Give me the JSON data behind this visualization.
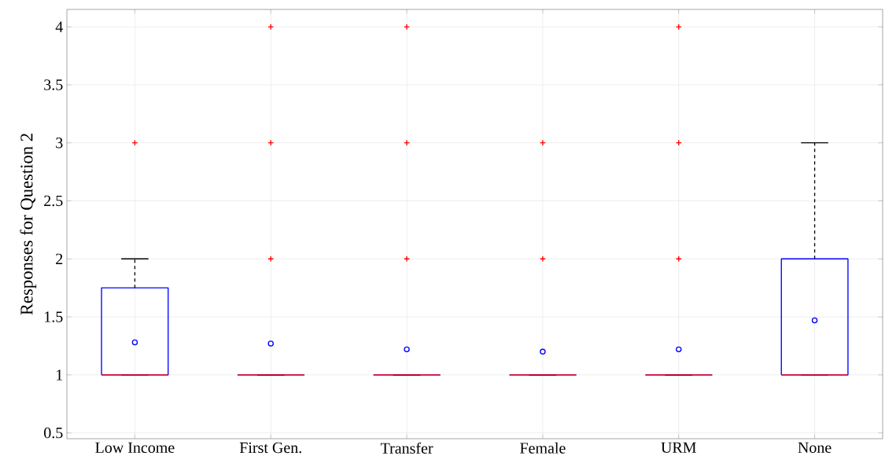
{
  "chart_data": {
    "type": "box",
    "ylabel": "Responses for Question 2",
    "categories": [
      "Low Income",
      "First Gen.",
      "Transfer",
      "Female",
      "URM",
      "None"
    ],
    "color": "#0000ff",
    "boxes": [
      {
        "low": 1,
        "q1": 1,
        "median": 1,
        "q3": 1.75,
        "high": 2,
        "mean": 1.28,
        "outliers": [
          3
        ]
      },
      {
        "low": 1,
        "q1": 1,
        "median": 1,
        "q3": 1,
        "high": 1,
        "mean": 1.27,
        "outliers": [
          2,
          3,
          4
        ]
      },
      {
        "low": 1,
        "q1": 1,
        "median": 1,
        "q3": 1,
        "high": 1,
        "mean": 1.22,
        "outliers": [
          2,
          3,
          4
        ]
      },
      {
        "low": 1,
        "q1": 1,
        "median": 1,
        "q3": 1,
        "high": 1,
        "mean": 1.2,
        "outliers": [
          2,
          3
        ]
      },
      {
        "low": 1,
        "q1": 1,
        "median": 1,
        "q3": 1,
        "high": 1,
        "mean": 1.22,
        "outliers": [
          2,
          3,
          4
        ]
      },
      {
        "low": 1,
        "q1": 1,
        "median": 1,
        "q3": 2,
        "high": 3,
        "mean": 1.47
      }
    ],
    "ylim": [
      0.45,
      4.15
    ],
    "yticks": [
      0.5,
      1,
      1.5,
      2,
      2.5,
      3,
      3.5,
      4
    ],
    "grid": true
  }
}
